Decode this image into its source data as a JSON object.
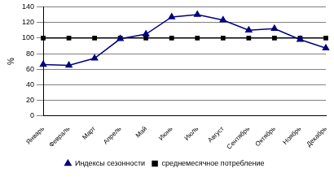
{
  "chart_data": {
    "type": "line",
    "y_label": "%",
    "categories": [
      "Январь",
      "Февраль",
      "Март",
      "Апрель",
      "Май",
      "Июнь",
      "Июль",
      "Август",
      "Сентябрь",
      "Октябрь",
      "Ноябрь",
      "Декабрь"
    ],
    "series": [
      {
        "name": "Индексы сезонности",
        "color": "#000080",
        "marker": "triangle",
        "line_style": "solid",
        "values": [
          66,
          65,
          74,
          99,
          105,
          127,
          130,
          123,
          110,
          112,
          98,
          87
        ]
      },
      {
        "name": "среднемесячное потребление",
        "color": "#000000",
        "marker": "square",
        "line_style": "solid",
        "values": [
          100,
          100,
          100,
          100,
          100,
          100,
          100,
          100,
          100,
          100,
          100,
          100
        ]
      }
    ],
    "ylim": [
      0,
      140
    ],
    "yticks": [
      0,
      20,
      40,
      60,
      80,
      100,
      120,
      140
    ],
    "grid": true,
    "legend": "bottom"
  }
}
